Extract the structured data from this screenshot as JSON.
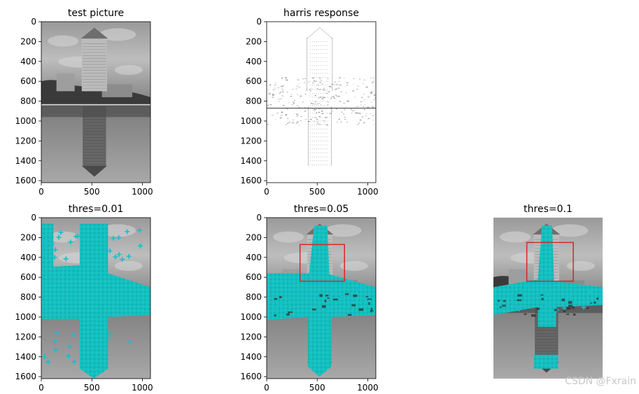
{
  "watermark": "CSDN @Fxrain",
  "colors": {
    "marker": "#17becf",
    "box": "#d62728",
    "axis": "#000000"
  },
  "chart_data": [
    {
      "type": "image",
      "title": "test picture",
      "image_width": 1080,
      "image_height": 1620,
      "xticks": [
        0,
        500,
        1000
      ],
      "yticks": [
        0,
        200,
        400,
        600,
        800,
        1000,
        1200,
        1400,
        1600
      ],
      "axes_visible": true,
      "content": "grayscale photo of a tower and its reflection in water"
    },
    {
      "type": "image",
      "title": "harris response",
      "image_width": 1080,
      "image_height": 1620,
      "xticks": [
        0,
        500,
        1000
      ],
      "yticks": [
        0,
        200,
        400,
        600,
        800,
        1000,
        1200,
        1400,
        1600
      ],
      "axes_visible": true,
      "content": "mostly white response map with dark edges along tower and shoreline"
    },
    {
      "type": "image",
      "title": "thres=0.01",
      "image_width": 1080,
      "image_height": 1620,
      "xticks": [
        0,
        500,
        1000
      ],
      "yticks": [
        0,
        200,
        400,
        600,
        800,
        1000,
        1200,
        1400,
        1600
      ],
      "axes_visible": true,
      "markers": "+",
      "marker_color": "cyan",
      "coverage": "dense cross shape covering tower and shoreline"
    },
    {
      "type": "image",
      "title": "thres=0.05",
      "image_width": 1080,
      "image_height": 1620,
      "xticks": [
        0,
        500,
        1000
      ],
      "yticks": [
        0,
        200,
        400,
        600,
        800,
        1000,
        1200,
        1400,
        1600
      ],
      "axes_visible": true,
      "markers": "+",
      "marker_color": "cyan",
      "box": {
        "x0": 330,
        "x1": 770,
        "y0": 270,
        "y1": 640
      }
    },
    {
      "type": "image",
      "title": "thres=0.1",
      "image_width": 1080,
      "image_height": 1620,
      "axes_visible": false,
      "markers": "+",
      "marker_color": "cyan",
      "box": {
        "x0": 330,
        "x1": 790,
        "y0": 250,
        "y1": 640
      }
    }
  ]
}
